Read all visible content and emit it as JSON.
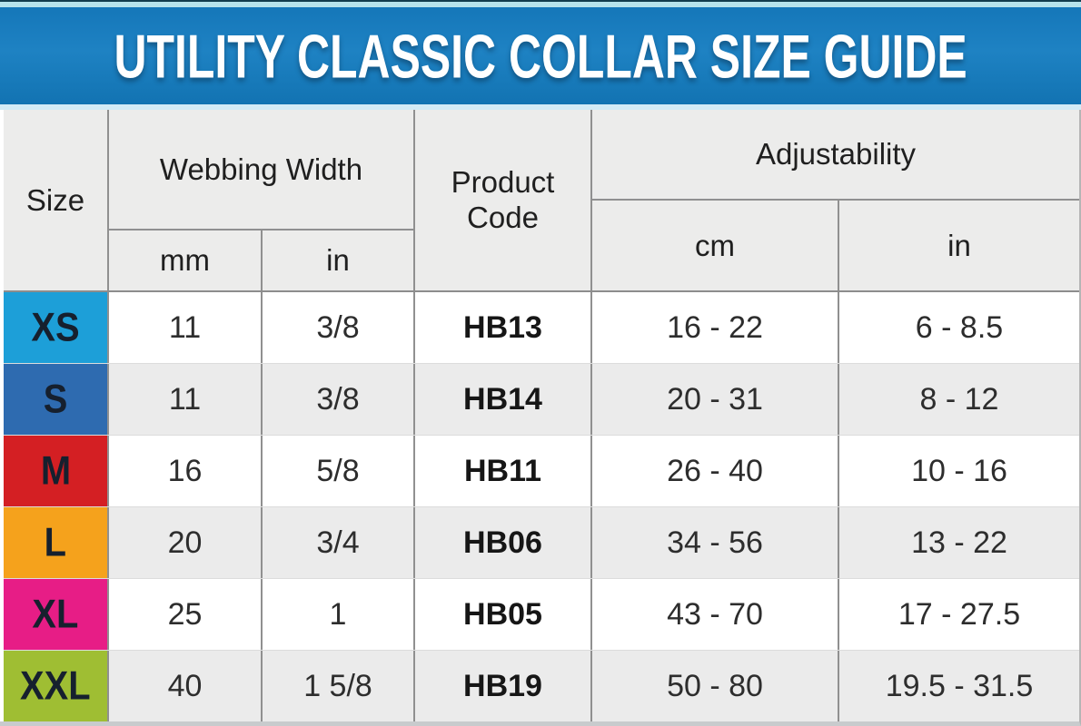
{
  "banner": {
    "title": "UTILITY CLASSIC COLLAR SIZE GUIDE"
  },
  "table": {
    "headers": {
      "size": "Size",
      "webbing_width": "Webbing Width",
      "mm": "mm",
      "in": "in",
      "product_code": "Product Code",
      "adjustability": "Adjustability",
      "cm": "cm",
      "adj_in": "in"
    },
    "rows": [
      {
        "size": "XS",
        "color": "#1d9fd8",
        "webbing_mm": "11",
        "webbing_in": "3/8",
        "product_code": "HB13",
        "adjust_cm": "16 - 22",
        "adjust_in": "6 - 8.5"
      },
      {
        "size": "S",
        "color": "#2e6bb0",
        "webbing_mm": "11",
        "webbing_in": "3/8",
        "product_code": "HB14",
        "adjust_cm": "20 - 31",
        "adjust_in": "8 - 12"
      },
      {
        "size": "M",
        "color": "#d41f23",
        "webbing_mm": "16",
        "webbing_in": "5/8",
        "product_code": "HB11",
        "adjust_cm": "26 - 40",
        "adjust_in": "10 - 16"
      },
      {
        "size": "L",
        "color": "#f5a21c",
        "webbing_mm": "20",
        "webbing_in": "3/4",
        "product_code": "HB06",
        "adjust_cm": "34 - 56",
        "adjust_in": "13 - 22"
      },
      {
        "size": "XL",
        "color": "#e71d86",
        "webbing_mm": "25",
        "webbing_in": "1",
        "product_code": "HB05",
        "adjust_cm": "43 - 70",
        "adjust_in": "17 - 27.5"
      },
      {
        "size": "XXL",
        "color": "#9fbe33",
        "webbing_mm": "40",
        "webbing_in": "1 5/8",
        "product_code": "HB19",
        "adjust_cm": "50 - 80",
        "adjust_in": "19.5 - 31.5"
      }
    ]
  },
  "colors": {
    "banner_blue": "#1578ba",
    "banner_top_strip": "#b7e3ec",
    "banner_bottom_strip": "#d2ebf6",
    "header_bg": "#ececeb",
    "row_bg": "#ffffff",
    "row_alt_bg": "#ebebeb",
    "grid_border": "#909090"
  },
  "chart_data": {
    "type": "table",
    "title": "UTILITY CLASSIC COLLAR SIZE GUIDE",
    "columns": [
      "Size",
      "Webbing Width mm",
      "Webbing Width in",
      "Product Code",
      "Adjustability cm",
      "Adjustability in"
    ],
    "rows": [
      [
        "XS",
        "11",
        "3/8",
        "HB13",
        "16 - 22",
        "6 - 8.5"
      ],
      [
        "S",
        "11",
        "3/8",
        "HB14",
        "20 - 31",
        "8 - 12"
      ],
      [
        "M",
        "16",
        "5/8",
        "HB11",
        "26 - 40",
        "10 - 16"
      ],
      [
        "L",
        "20",
        "3/4",
        "HB06",
        "34 - 56",
        "13 - 22"
      ],
      [
        "XL",
        "25",
        "1",
        "HB05",
        "43 - 70",
        "17 - 27.5"
      ],
      [
        "XXL",
        "40",
        "1 5/8",
        "HB19",
        "50 - 80",
        "19.5 - 31.5"
      ]
    ],
    "row_swatch_colors": [
      "#1d9fd8",
      "#2e6bb0",
      "#d41f23",
      "#f5a21c",
      "#e71d86",
      "#9fbe33"
    ]
  }
}
